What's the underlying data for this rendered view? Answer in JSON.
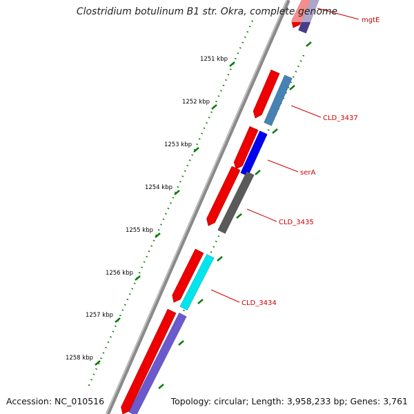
{
  "map": {
    "title": "Clostridium botulinum B1 str. Okra, complete genome",
    "accession": "NC_010516",
    "topology": "circular",
    "length": "3,958,233 bp",
    "genes": "3,761",
    "footer_labels": {
      "accession_prefix": "Accession: ",
      "topology_prefix": "Topology: ",
      "length_prefix": "; Length: ",
      "genes_prefix": "; Genes: "
    }
  },
  "ticks": [
    {
      "label": "1251 kbp",
      "kbp": 1251
    },
    {
      "label": "1252 kbp",
      "kbp": 1252
    },
    {
      "label": "1253 kbp",
      "kbp": 1253
    },
    {
      "label": "1254 kbp",
      "kbp": 1254
    },
    {
      "label": "1255 kbp",
      "kbp": 1255
    },
    {
      "label": "1256 kbp",
      "kbp": 1256
    },
    {
      "label": "1257 kbp",
      "kbp": 1257
    },
    {
      "label": "1258 kbp",
      "kbp": 1258
    }
  ],
  "genes": [
    {
      "label": "mgtE",
      "color": "#483d8b"
    },
    {
      "label": "CLD_3437",
      "color": "#4682b4"
    },
    {
      "label": "serA",
      "color": "#0000ee"
    },
    {
      "label": "CLD_3435",
      "color": "#5a5a5a"
    },
    {
      "label": "CLD_3434",
      "color": "#00e5ee"
    },
    {
      "label": "",
      "color": "#6a5acd"
    }
  ],
  "colors": {
    "backbone": "#808080",
    "cds": "#ee0000",
    "tick": "#0a7a0a",
    "label": "#cc0000",
    "tick_label": "#000000"
  }
}
